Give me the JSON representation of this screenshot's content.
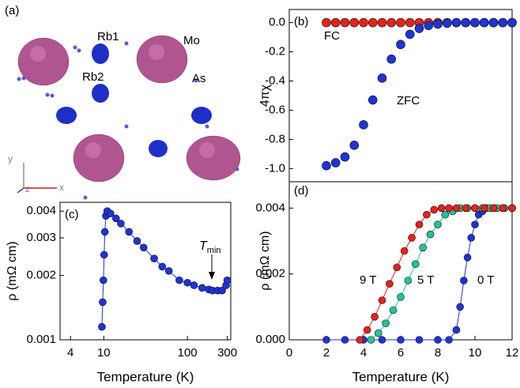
{
  "structure": {
    "panel_label": "(a)",
    "labels": [
      "Rb1",
      "Mo",
      "Rb2",
      "As"
    ],
    "axes": [
      "y",
      "z",
      "x"
    ]
  },
  "chart_data": [
    {
      "type": "scatter",
      "panel_label": "(b)",
      "y_label": "4πχ",
      "xlim": [
        0,
        12
      ],
      "ylim": [
        -1.09,
        0.09
      ],
      "yticks": [
        {
          "value": -1,
          "label": "-1.0"
        },
        -0.8,
        -0.6,
        -0.4,
        -0.2,
        {
          "value": 0,
          "label": "0.0"
        }
      ],
      "series": [
        {
          "name": "FC",
          "color": "#e8221b",
          "x": [
            2,
            2.5,
            3,
            3.5,
            4,
            4.5,
            5,
            5.5,
            6,
            6.5,
            7,
            7.5,
            8,
            8.5,
            9,
            9.5,
            10,
            10.5,
            11,
            11.5,
            12
          ],
          "values": [
            0,
            0,
            0,
            0,
            0,
            0,
            0,
            0,
            0,
            0,
            0,
            0,
            0,
            0,
            0,
            0,
            0,
            0,
            0,
            0,
            0
          ]
        },
        {
          "name": "ZFC",
          "color": "#1f33d6",
          "x": [
            2,
            2.5,
            3,
            3.5,
            4,
            4.5,
            5,
            5.5,
            6,
            6.5,
            7,
            7.5,
            8,
            8.5,
            9,
            9.5,
            10,
            10.5,
            11,
            11.5,
            12
          ],
          "values": [
            -0.98,
            -0.96,
            -0.92,
            -0.84,
            -0.7,
            -0.53,
            -0.38,
            -0.25,
            -0.15,
            -0.08,
            -0.04,
            -0.02,
            -0.01,
            -0.004,
            0,
            0,
            0,
            0,
            0,
            0,
            0
          ]
        }
      ]
    },
    {
      "type": "line",
      "panel_label": "(c)",
      "x_label": "Temperature (K)",
      "y_label": "ρ (mΩ cm)",
      "annotation": "T",
      "annotation_sub": "min",
      "log_x": true,
      "log_y": true,
      "xlim": [
        3,
        330
      ],
      "ylim": [
        0.001,
        0.0044
      ],
      "xticks": [
        4,
        10,
        100,
        300
      ],
      "yticks": [
        0.001,
        0.002,
        0.003,
        0.004
      ],
      "series": [
        {
          "color": "#1f33d6",
          "x": [
            9.5,
            9.7,
            9.9,
            10.1,
            10.3,
            10.6,
            11,
            12,
            14,
            16,
            20,
            25,
            30,
            40,
            50,
            60,
            80,
            100,
            120,
            150,
            180,
            200,
            230,
            260,
            290,
            300
          ],
          "values": [
            0.00115,
            0.0015,
            0.0019,
            0.0025,
            0.0032,
            0.0038,
            0.004,
            0.0039,
            0.0037,
            0.0035,
            0.0032,
            0.0029,
            0.0027,
            0.0024,
            0.0022,
            0.0021,
            0.0019,
            0.00185,
            0.0018,
            0.00175,
            0.00172,
            0.0017,
            0.0017,
            0.0017,
            0.0018,
            0.0019
          ]
        }
      ]
    },
    {
      "type": "line",
      "panel_label": "(d)",
      "x_label": "Temperature (K)",
      "y_label": "ρ (mΩ cm)",
      "xlim": [
        0,
        12
      ],
      "ylim": [
        0,
        0.0048
      ],
      "xticks": [
        0,
        2,
        4,
        6,
        8,
        10,
        12
      ],
      "yticks": [
        {
          "value": 0,
          "label": "0.000"
        },
        0.002,
        0.004
      ],
      "series": [
        {
          "name": "0 T",
          "color": "#1f33d6",
          "x": [
            2,
            3,
            4,
            5,
            6,
            7,
            8,
            8.6,
            9,
            9.2,
            9.4,
            9.6,
            9.8,
            10,
            10.2,
            10.4,
            10.6,
            11,
            11.5,
            12
          ],
          "values": [
            0,
            0,
            0,
            0,
            0,
            0,
            0,
            0,
            0.0003,
            0.001,
            0.0018,
            0.0025,
            0.0031,
            0.0035,
            0.0038,
            0.0039,
            0.004,
            0.004,
            0.004,
            0.004
          ]
        },
        {
          "name": "5 T",
          "color": "#26c29a",
          "x": [
            4.4,
            4.8,
            5.2,
            5.6,
            6,
            6.4,
            6.8,
            7.2,
            7.6,
            8,
            8.4,
            8.8,
            9.2,
            9.6,
            10,
            10.4,
            10.8,
            11.2,
            11.6,
            12
          ],
          "values": [
            0,
            0.0002,
            0.0005,
            0.0009,
            0.0013,
            0.0018,
            0.0023,
            0.0028,
            0.0032,
            0.0035,
            0.0038,
            0.0039,
            0.004,
            0.004,
            0.004,
            0.004,
            0.004,
            0.004,
            0.004,
            0.004
          ]
        },
        {
          "name": "9 T",
          "color": "#e8221b",
          "x": [
            3.8,
            4.2,
            4.6,
            5,
            5.4,
            5.8,
            6.2,
            6.6,
            7,
            7.4,
            7.8,
            8.2,
            8.6,
            9,
            9.5,
            10,
            10.5,
            11,
            11.5,
            12
          ],
          "values": [
            0,
            0.0003,
            0.0007,
            0.0012,
            0.0017,
            0.0022,
            0.0027,
            0.0031,
            0.0035,
            0.0038,
            0.00395,
            0.004,
            0.004,
            0.004,
            0.004,
            0.004,
            0.004,
            0.004,
            0.004,
            0.004
          ]
        }
      ]
    }
  ]
}
